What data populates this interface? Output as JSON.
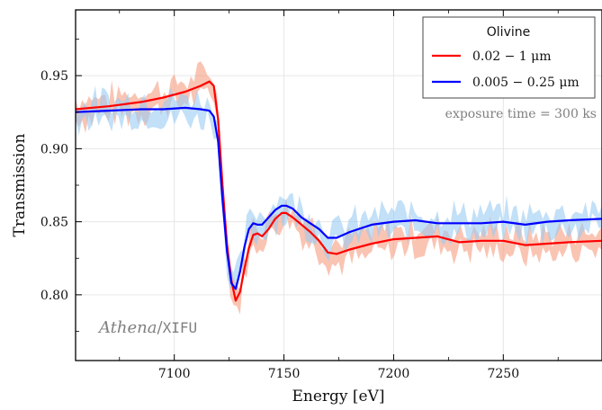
{
  "chart_data": {
    "type": "line",
    "xlabel": "Energy   [eV]",
    "ylabel": "Transmission",
    "xlim": [
      7055,
      7295
    ],
    "ylim": [
      0.755,
      0.995
    ],
    "xticks": [
      7100,
      7150,
      7200,
      7250
    ],
    "xtick_labels": [
      "7100",
      "7150",
      "7200",
      "7250"
    ],
    "yticks": [
      0.8,
      0.85,
      0.9,
      0.95
    ],
    "ytick_labels": [
      "0.80",
      "0.85",
      "0.90",
      "0.95"
    ],
    "grid": true,
    "legend": {
      "title": "Olivine",
      "placement": "top-right",
      "entries": [
        "0.02 − 1 μm",
        "0.005 − 0.25 μm"
      ]
    },
    "annotations": {
      "exposure": "exposure time = 300 ks",
      "watermark_italic": "Athena",
      "watermark_slash": "/",
      "watermark_mono": "XIFU"
    },
    "series": [
      {
        "name": "0.02 − 1 μm",
        "color": "#ff0000",
        "band_color": "#f7a58a",
        "x": [
          7055,
          7070,
          7085,
          7095,
          7105,
          7112,
          7116,
          7118,
          7120,
          7122,
          7124,
          7126,
          7128,
          7130,
          7132,
          7134,
          7136,
          7138,
          7140,
          7143,
          7146,
          7149,
          7151,
          7154,
          7158,
          7162,
          7166,
          7170,
          7174,
          7180,
          7190,
          7200,
          7210,
          7220,
          7230,
          7240,
          7250,
          7260,
          7270,
          7280,
          7295
        ],
        "values": [
          0.927,
          0.929,
          0.932,
          0.935,
          0.939,
          0.943,
          0.946,
          0.943,
          0.92,
          0.875,
          0.835,
          0.81,
          0.796,
          0.802,
          0.818,
          0.832,
          0.841,
          0.842,
          0.84,
          0.845,
          0.852,
          0.856,
          0.856,
          0.853,
          0.848,
          0.843,
          0.837,
          0.829,
          0.828,
          0.831,
          0.835,
          0.838,
          0.839,
          0.84,
          0.836,
          0.837,
          0.837,
          0.834,
          0.835,
          0.836,
          0.837
        ]
      },
      {
        "name": "0.005 − 0.25 μm",
        "color": "#0000ff",
        "band_color": "#99ccf2",
        "x": [
          7055,
          7070,
          7085,
          7095,
          7105,
          7112,
          7116,
          7118,
          7120,
          7122,
          7124,
          7126,
          7128,
          7130,
          7132,
          7134,
          7136,
          7138,
          7140,
          7143,
          7146,
          7149,
          7151,
          7154,
          7158,
          7162,
          7166,
          7170,
          7174,
          7180,
          7190,
          7200,
          7210,
          7220,
          7230,
          7240,
          7250,
          7260,
          7270,
          7280,
          7295
        ],
        "values": [
          0.925,
          0.926,
          0.927,
          0.927,
          0.928,
          0.927,
          0.926,
          0.922,
          0.905,
          0.865,
          0.83,
          0.808,
          0.804,
          0.816,
          0.833,
          0.845,
          0.849,
          0.848,
          0.848,
          0.853,
          0.858,
          0.861,
          0.861,
          0.859,
          0.853,
          0.849,
          0.845,
          0.839,
          0.839,
          0.843,
          0.848,
          0.85,
          0.851,
          0.849,
          0.849,
          0.849,
          0.85,
          0.848,
          0.85,
          0.851,
          0.852
        ]
      }
    ]
  }
}
